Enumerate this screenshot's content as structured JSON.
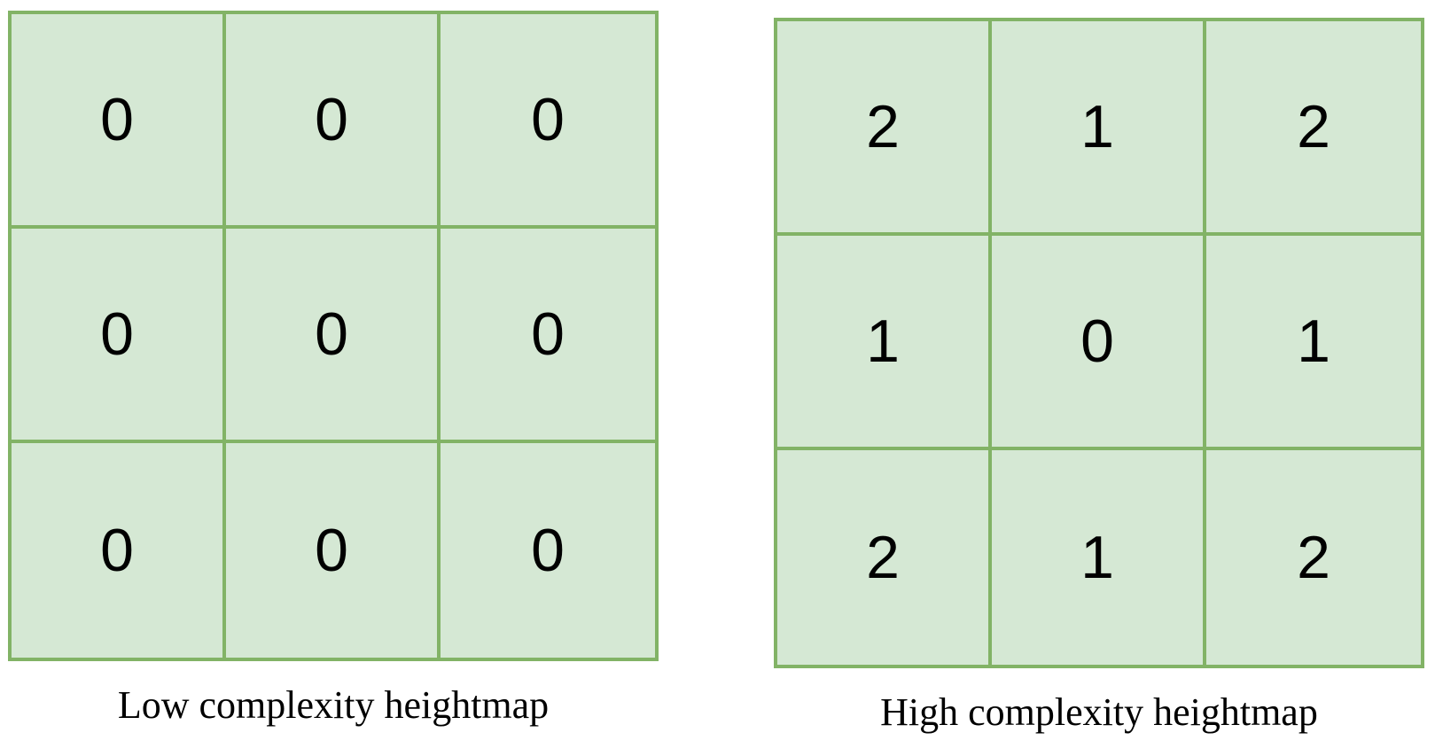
{
  "diagrams": [
    {
      "caption": "Low complexity heightmap",
      "cells": [
        "0",
        "0",
        "0",
        "0",
        "0",
        "0",
        "0",
        "0",
        "0"
      ]
    },
    {
      "caption": "High complexity heightmap",
      "cells": [
        "2",
        "1",
        "2",
        "1",
        "0",
        "1",
        "2",
        "1",
        "2"
      ]
    }
  ],
  "colors": {
    "cell_fill": "#d5e8d4",
    "grid_line": "#82b366",
    "text": "#000000"
  }
}
